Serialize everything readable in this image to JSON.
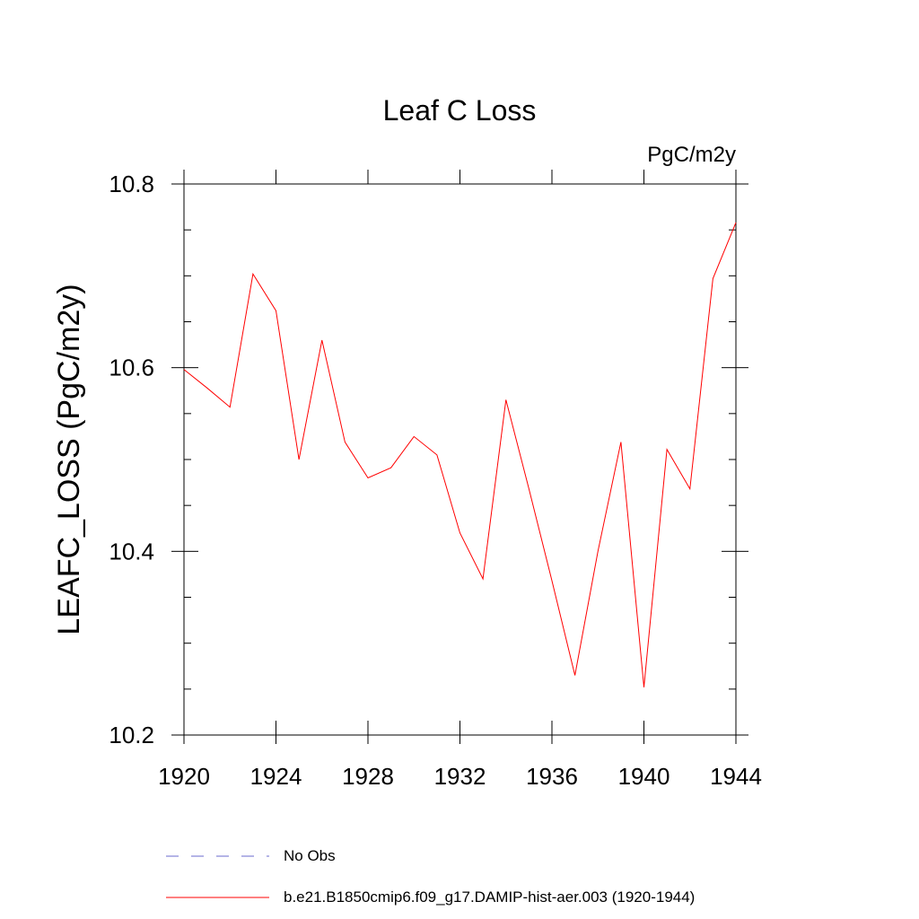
{
  "chart_data": {
    "type": "line",
    "title": "Leaf C Loss",
    "units_label": "PgC/m2y",
    "ylabel": "LEAFC_LOSS  (PgC/m2y)",
    "xlabel": "",
    "xlim": [
      1920,
      1944
    ],
    "ylim": [
      10.2,
      10.8
    ],
    "x_ticks": [
      "1920",
      "1924",
      "1928",
      "1932",
      "1936",
      "1940",
      "1944"
    ],
    "y_ticks": [
      "10.2",
      "10.4",
      "10.6",
      "10.8"
    ],
    "grid": false,
    "legend_position": "bottom",
    "x": [
      1920,
      1921,
      1922,
      1923,
      1924,
      1925,
      1926,
      1927,
      1928,
      1929,
      1930,
      1931,
      1932,
      1933,
      1934,
      1935,
      1936,
      1937,
      1938,
      1939,
      1940,
      1941,
      1942,
      1943,
      1944
    ],
    "series": [
      {
        "name": "b.e21.B1850cmip6.f09_g17.DAMIP-hist-aer.003 (1920-1944)",
        "color": "#ff0000",
        "style": "solid",
        "values": [
          10.598,
          10.578,
          10.557,
          10.702,
          10.662,
          10.5,
          10.63,
          10.519,
          10.48,
          10.491,
          10.525,
          10.505,
          10.42,
          10.37,
          10.565,
          10.468,
          10.368,
          10.265,
          10.4,
          10.519,
          10.252,
          10.511,
          10.468,
          10.697,
          10.758
        ]
      }
    ],
    "legend": [
      {
        "label": "No Obs",
        "color": "#6a6acd",
        "style": "dashed"
      },
      {
        "label": "b.e21.B1850cmip6.f09_g17.DAMIP-hist-aer.003 (1920-1944)",
        "color": "#ff0000",
        "style": "solid"
      }
    ]
  }
}
